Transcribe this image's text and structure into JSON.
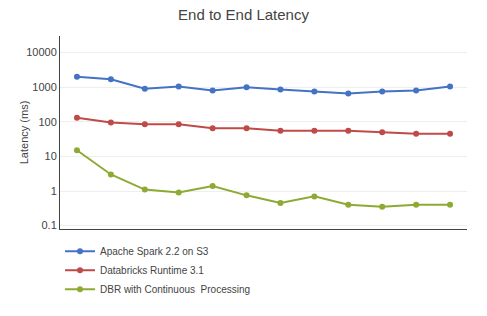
{
  "chart_data": {
    "type": "line",
    "title": "End to End Latency",
    "ylabel": "Latency (ms)",
    "x": [
      1,
      2,
      3,
      4,
      5,
      6,
      7,
      8,
      9,
      10,
      11,
      12
    ],
    "series": [
      {
        "name": "Apache Spark 2.2 on S3",
        "color": "#4472C4",
        "values": [
          2000,
          1700,
          900,
          1050,
          800,
          1000,
          850,
          750,
          650,
          750,
          800,
          1050
        ]
      },
      {
        "name": "Databricks Runtime 3.1",
        "color": "#BE4B48",
        "values": [
          130,
          95,
          85,
          85,
          65,
          65,
          55,
          55,
          55,
          50,
          45,
          45
        ]
      },
      {
        "name": "DBR with Continuous  Processing",
        "color": "#8DAA33",
        "values": [
          15,
          3,
          1.1,
          0.9,
          1.4,
          0.75,
          0.45,
          0.7,
          0.4,
          0.35,
          0.4,
          0.4
        ]
      }
    ],
    "xlim": [
      0.5,
      12.5
    ],
    "ylim": [
      0.08,
      30000
    ],
    "yticks": [
      0.1,
      1,
      10,
      100,
      1000,
      10000
    ],
    "log": "y",
    "grid": true,
    "legend": "bottom",
    "tick_labels": "y",
    "marker": "circle"
  }
}
